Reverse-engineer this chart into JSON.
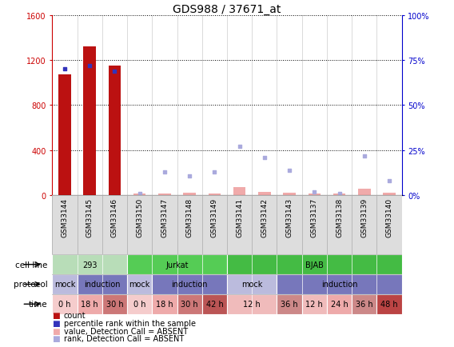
{
  "title": "GDS988 / 37671_at",
  "samples": [
    "GSM33144",
    "GSM33145",
    "GSM33146",
    "GSM33150",
    "GSM33147",
    "GSM33148",
    "GSM33149",
    "GSM33141",
    "GSM33142",
    "GSM33143",
    "GSM33137",
    "GSM33138",
    "GSM33139",
    "GSM33140"
  ],
  "count_values": [
    1070,
    1320,
    1150,
    20,
    15,
    25,
    18,
    70,
    30,
    25,
    20,
    18,
    60,
    22
  ],
  "count_present": [
    true,
    true,
    true,
    false,
    false,
    false,
    false,
    false,
    false,
    false,
    false,
    false,
    false,
    false
  ],
  "rank_pct_values": [
    70,
    72,
    69,
    1,
    13,
    11,
    13,
    27,
    21,
    14,
    2,
    1,
    22,
    8
  ],
  "rank_present": [
    true,
    true,
    true,
    false,
    false,
    false,
    false,
    false,
    false,
    false,
    false,
    false,
    false,
    false
  ],
  "ylim_left": [
    0,
    1600
  ],
  "ylim_right": [
    0,
    100
  ],
  "yticks_left": [
    0,
    400,
    800,
    1200,
    1600
  ],
  "yticks_right": [
    0,
    25,
    50,
    75,
    100
  ],
  "ytick_right_labels": [
    "0%",
    "25%",
    "50%",
    "75%",
    "100%"
  ],
  "cell_line_groups": [
    {
      "label": "293",
      "start": 0,
      "end": 2,
      "color": "#b8ddb8"
    },
    {
      "label": "Jurkat",
      "start": 3,
      "end": 6,
      "color": "#55cc55"
    },
    {
      "label": "BJAB",
      "start": 7,
      "end": 13,
      "color": "#44bb44"
    }
  ],
  "protocol_groups": [
    {
      "label": "mock",
      "start": 0,
      "end": 0,
      "color": "#bbbbdd"
    },
    {
      "label": "induction",
      "start": 1,
      "end": 2,
      "color": "#7777bb"
    },
    {
      "label": "mock",
      "start": 3,
      "end": 3,
      "color": "#bbbbdd"
    },
    {
      "label": "induction",
      "start": 4,
      "end": 6,
      "color": "#7777bb"
    },
    {
      "label": "mock",
      "start": 7,
      "end": 8,
      "color": "#bbbbdd"
    },
    {
      "label": "induction",
      "start": 9,
      "end": 13,
      "color": "#7777bb"
    }
  ],
  "time_groups": [
    {
      "label": "0 h",
      "start": 0,
      "end": 0,
      "color": "#f5cccc"
    },
    {
      "label": "18 h",
      "start": 1,
      "end": 1,
      "color": "#eeaaaa"
    },
    {
      "label": "30 h",
      "start": 2,
      "end": 2,
      "color": "#cc7777"
    },
    {
      "label": "0 h",
      "start": 3,
      "end": 3,
      "color": "#f5cccc"
    },
    {
      "label": "18 h",
      "start": 4,
      "end": 4,
      "color": "#eeaaaa"
    },
    {
      "label": "30 h",
      "start": 5,
      "end": 5,
      "color": "#cc7777"
    },
    {
      "label": "42 h",
      "start": 6,
      "end": 6,
      "color": "#bb5555"
    },
    {
      "label": "12 h",
      "start": 7,
      "end": 8,
      "color": "#f0bbbb"
    },
    {
      "label": "36 h",
      "start": 9,
      "end": 9,
      "color": "#cc8888"
    },
    {
      "label": "12 h",
      "start": 10,
      "end": 10,
      "color": "#f0bbbb"
    },
    {
      "label": "24 h",
      "start": 11,
      "end": 11,
      "color": "#eeaaaa"
    },
    {
      "label": "36 h",
      "start": 12,
      "end": 12,
      "color": "#cc8888"
    },
    {
      "label": "48 h",
      "start": 13,
      "end": 13,
      "color": "#bb4444"
    }
  ],
  "bar_color_present": "#bb1111",
  "bar_color_absent": "#f0aaaa",
  "rank_color_present": "#3333bb",
  "rank_color_absent": "#aaaadd",
  "axis_color_left": "#cc0000",
  "axis_color_right": "#0000cc",
  "background_color": "#ffffff",
  "label_fontsize": 7.5,
  "title_fontsize": 10,
  "tick_fontsize": 7,
  "sample_fontsize": 6.5,
  "annot_fontsize": 7,
  "row_label_fontsize": 7.5
}
